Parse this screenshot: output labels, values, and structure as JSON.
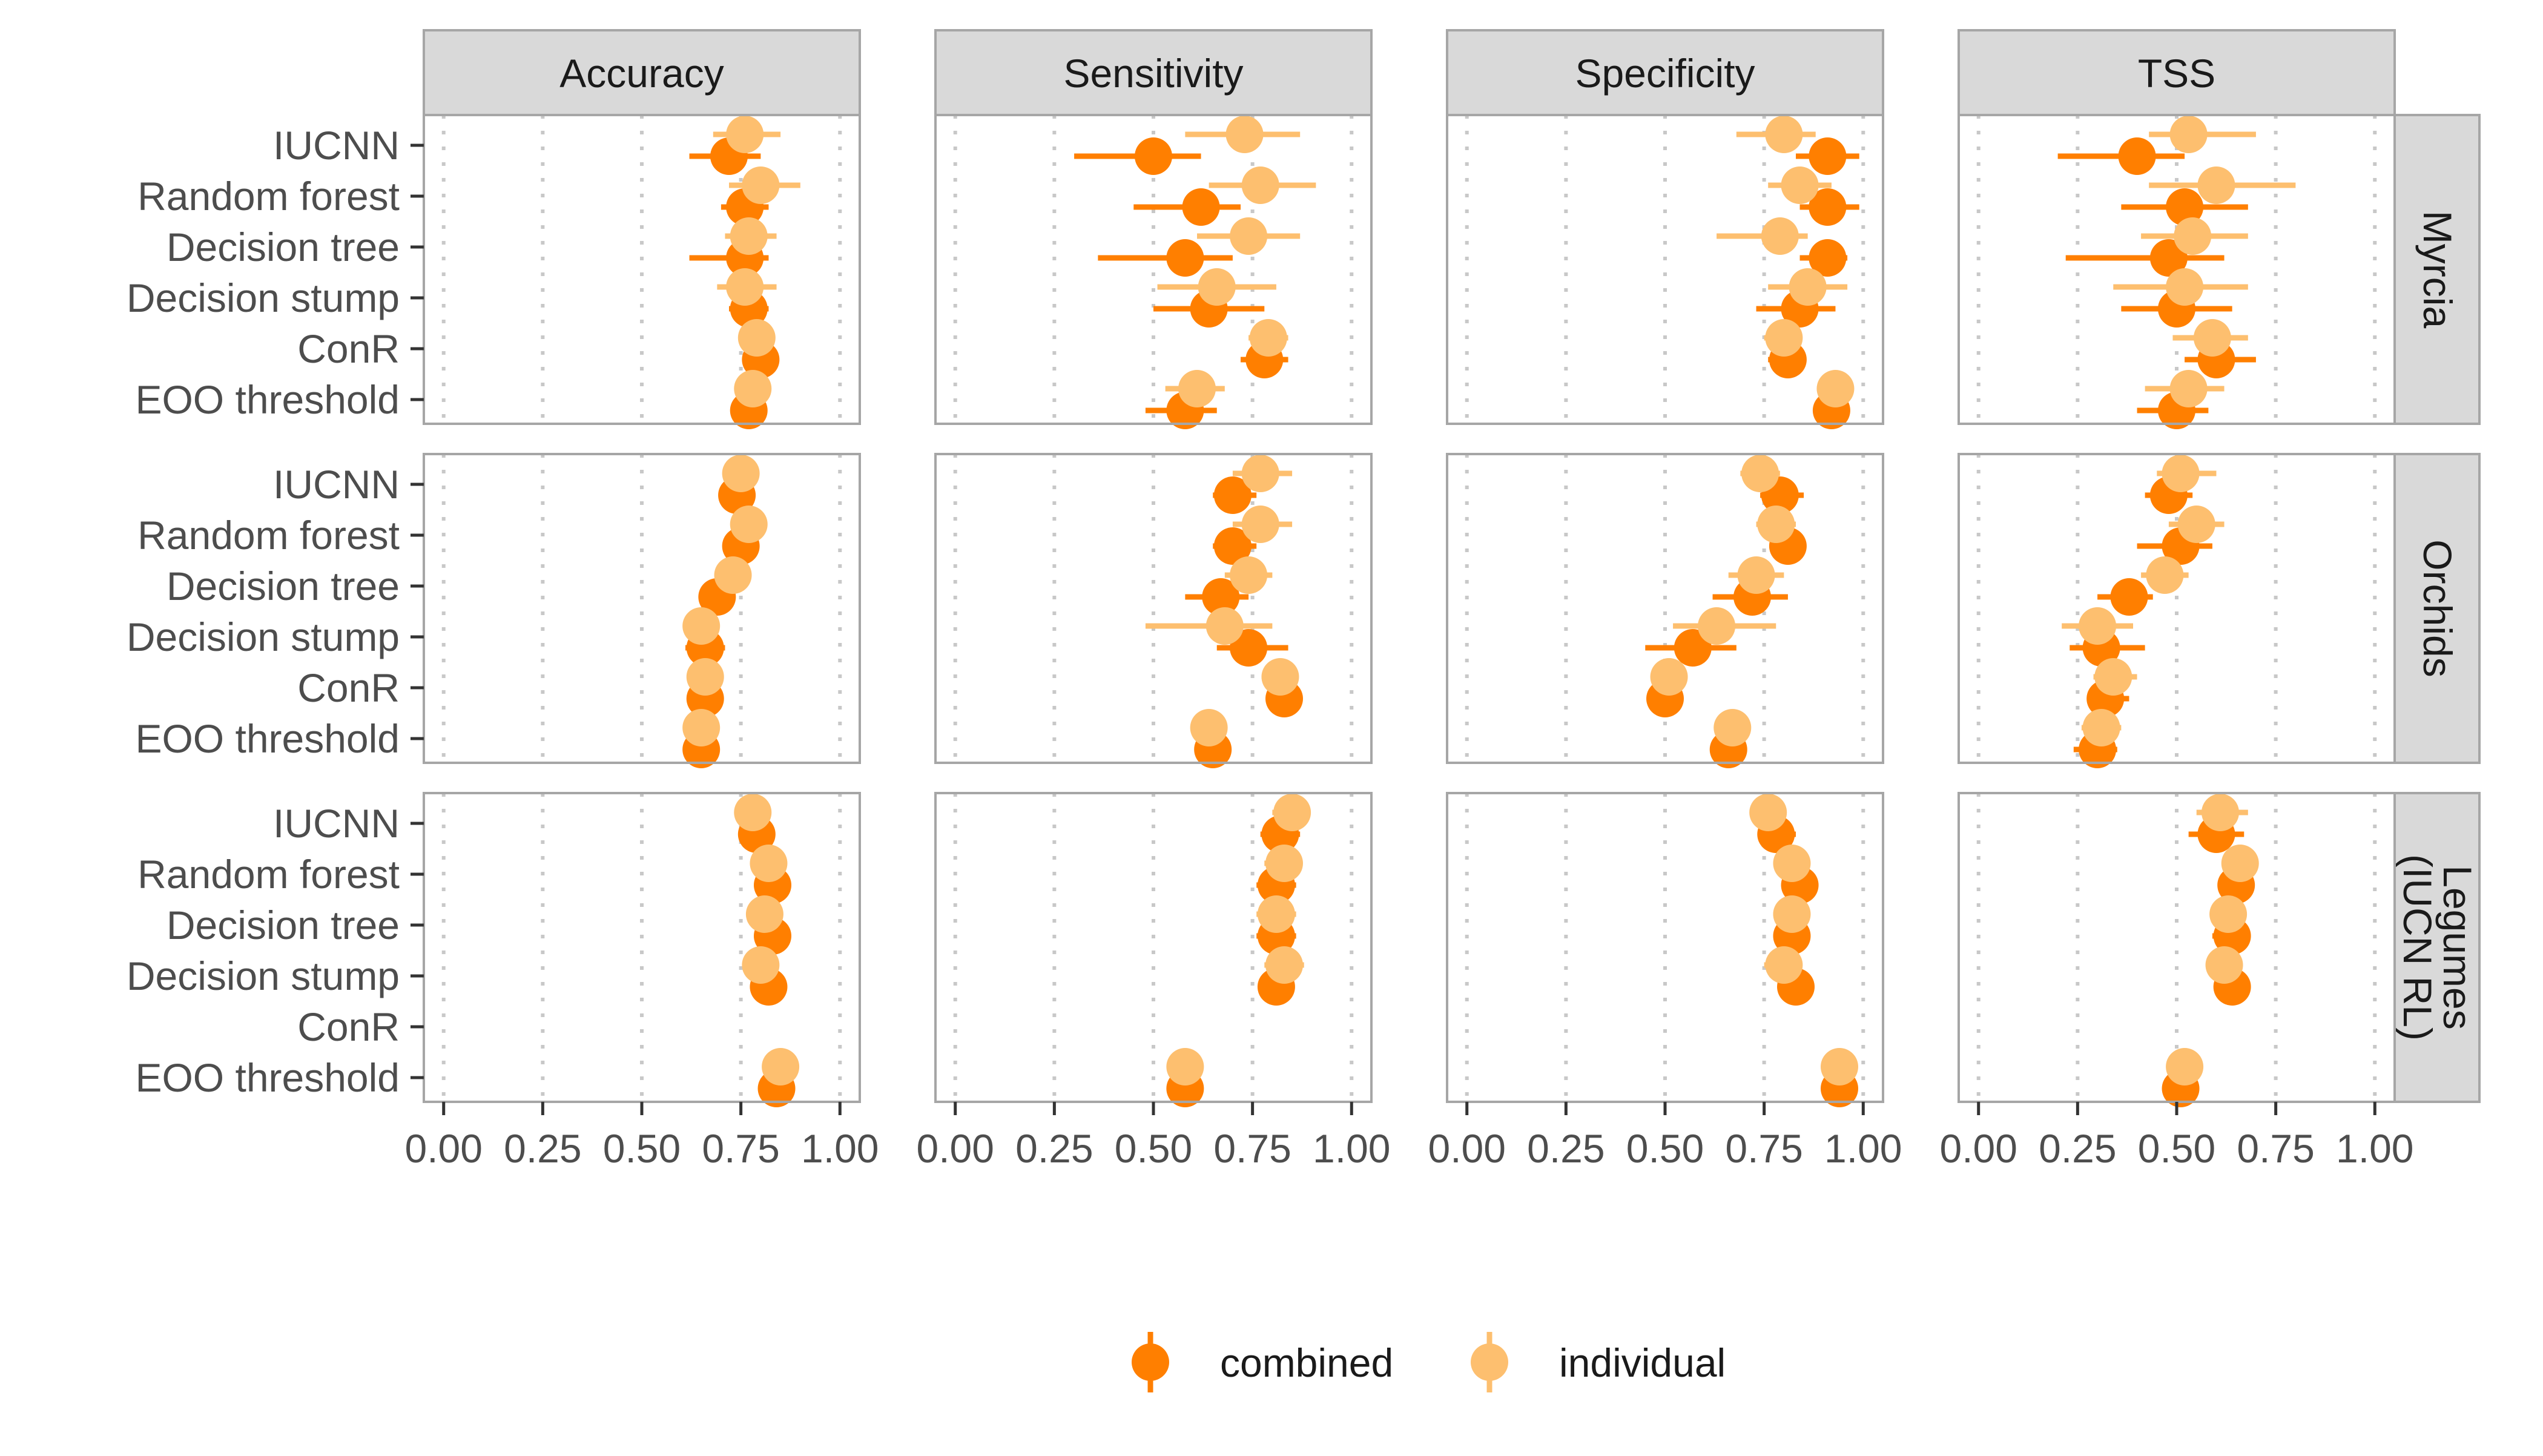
{
  "chart_data": {
    "type": "scatter",
    "subtype": "faceted dot plot with error bars",
    "metrics": [
      "Accuracy",
      "Sensitivity",
      "Specificity",
      "TSS"
    ],
    "datasets": [
      "Myrcia",
      "Orchids",
      "Legumes\n(IUCN RL)"
    ],
    "methods": [
      "IUCNN",
      "Random forest",
      "Decision tree",
      "Decision stump",
      "ConR",
      "EOO threshold"
    ],
    "x_ticks": [
      "0.00",
      "0.25",
      "0.50",
      "0.75",
      "1.00"
    ],
    "xlim": [
      -0.05,
      1.05
    ],
    "grid": "dotted vertical major gridlines",
    "legend": {
      "position": "bottom",
      "entries": [
        "combined",
        "individual"
      ]
    },
    "colors": {
      "combined": "#FF7F00",
      "individual": "#FDBF6F",
      "strip": "#D9D9D9",
      "panel_border": "#A6A6A6",
      "text": "#4D4D4D"
    },
    "series": [
      {
        "name": "combined",
        "facets": {
          "Myrcia": {
            "Accuracy": [
              [
                0.72,
                0.62,
                0.8
              ],
              [
                0.76,
                0.7,
                0.82
              ],
              [
                0.76,
                0.62,
                0.82
              ],
              [
                0.77,
                0.72,
                0.82
              ],
              [
                0.8,
                0.77,
                0.84
              ],
              [
                0.77,
                0.74,
                0.81
              ]
            ],
            "Sensitivity": [
              [
                0.5,
                0.3,
                0.62
              ],
              [
                0.62,
                0.45,
                0.72
              ],
              [
                0.58,
                0.36,
                0.7
              ],
              [
                0.64,
                0.5,
                0.78
              ],
              [
                0.78,
                0.72,
                0.84
              ],
              [
                0.58,
                0.48,
                0.66
              ]
            ],
            "Specificity": [
              [
                0.91,
                0.83,
                0.99
              ],
              [
                0.91,
                0.84,
                0.99
              ],
              [
                0.91,
                0.84,
                0.96
              ],
              [
                0.84,
                0.73,
                0.93
              ],
              [
                0.81,
                0.76,
                0.85
              ],
              [
                0.92,
                0.88,
                0.96
              ]
            ],
            "TSS": [
              [
                0.4,
                0.2,
                0.52
              ],
              [
                0.52,
                0.36,
                0.68
              ],
              [
                0.48,
                0.22,
                0.62
              ],
              [
                0.5,
                0.36,
                0.64
              ],
              [
                0.6,
                0.52,
                0.7
              ],
              [
                0.5,
                0.4,
                0.58
              ]
            ]
          },
          "Orchids": {
            "Accuracy": [
              [
                0.74,
                0.71,
                0.78
              ],
              [
                0.75,
                0.71,
                0.79
              ],
              [
                0.69,
                0.66,
                0.73
              ],
              [
                0.66,
                0.61,
                0.71
              ],
              [
                0.66,
                0.63,
                0.69
              ],
              [
                0.65,
                0.62,
                0.68
              ]
            ],
            "Sensitivity": [
              [
                0.7,
                0.65,
                0.76
              ],
              [
                0.7,
                0.65,
                0.76
              ],
              [
                0.67,
                0.58,
                0.74
              ],
              [
                0.74,
                0.66,
                0.84
              ],
              [
                0.83,
                0.8,
                0.86
              ],
              [
                0.65,
                0.62,
                0.69
              ]
            ],
            "Specificity": [
              [
                0.79,
                0.74,
                0.85
              ],
              [
                0.81,
                0.77,
                0.85
              ],
              [
                0.72,
                0.62,
                0.81
              ],
              [
                0.57,
                0.45,
                0.68
              ],
              [
                0.5,
                0.47,
                0.53
              ],
              [
                0.66,
                0.63,
                0.69
              ]
            ],
            "TSS": [
              [
                0.48,
                0.42,
                0.54
              ],
              [
                0.51,
                0.4,
                0.59
              ],
              [
                0.38,
                0.3,
                0.44
              ],
              [
                0.31,
                0.23,
                0.42
              ],
              [
                0.32,
                0.28,
                0.38
              ],
              [
                0.3,
                0.24,
                0.35
              ]
            ]
          },
          "Legumes\n(IUCN RL)": {
            "Accuracy": [
              [
                0.79,
                0.76,
                0.82
              ],
              [
                0.83,
                0.8,
                0.86
              ],
              [
                0.83,
                0.8,
                0.86
              ],
              [
                0.82,
                0.79,
                0.85
              ],
              null,
              [
                0.84,
                0.81,
                0.87
              ]
            ],
            "Sensitivity": [
              [
                0.82,
                0.77,
                0.87
              ],
              [
                0.81,
                0.76,
                0.86
              ],
              [
                0.81,
                0.76,
                0.86
              ],
              [
                0.81,
                0.77,
                0.85
              ],
              null,
              [
                0.58,
                0.55,
                0.61
              ]
            ],
            "Specificity": [
              [
                0.78,
                0.74,
                0.83
              ],
              [
                0.84,
                0.81,
                0.87
              ],
              [
                0.82,
                0.79,
                0.85
              ],
              [
                0.83,
                0.8,
                0.86
              ],
              null,
              [
                0.94,
                0.91,
                0.96
              ]
            ],
            "TSS": [
              [
                0.6,
                0.53,
                0.67
              ],
              [
                0.65,
                0.61,
                0.69
              ],
              [
                0.64,
                0.59,
                0.68
              ],
              [
                0.64,
                0.6,
                0.68
              ],
              null,
              [
                0.51,
                0.48,
                0.54
              ]
            ]
          }
        }
      },
      {
        "name": "individual",
        "facets": {
          "Myrcia": {
            "Accuracy": [
              [
                0.76,
                0.68,
                0.85
              ],
              [
                0.8,
                0.72,
                0.9
              ],
              [
                0.77,
                0.71,
                0.84
              ],
              [
                0.76,
                0.69,
                0.84
              ],
              [
                0.79,
                0.76,
                0.83
              ],
              [
                0.78,
                0.75,
                0.82
              ]
            ],
            "Sensitivity": [
              [
                0.73,
                0.58,
                0.87
              ],
              [
                0.77,
                0.64,
                0.91
              ],
              [
                0.74,
                0.61,
                0.87
              ],
              [
                0.66,
                0.51,
                0.81
              ],
              [
                0.79,
                0.74,
                0.84
              ],
              [
                0.61,
                0.53,
                0.68
              ]
            ],
            "Specificity": [
              [
                0.8,
                0.68,
                0.88
              ],
              [
                0.84,
                0.76,
                0.92
              ],
              [
                0.79,
                0.63,
                0.86
              ],
              [
                0.86,
                0.76,
                0.96
              ],
              [
                0.8,
                0.75,
                0.84
              ],
              [
                0.93,
                0.89,
                0.96
              ]
            ],
            "TSS": [
              [
                0.53,
                0.43,
                0.7
              ],
              [
                0.6,
                0.43,
                0.8
              ],
              [
                0.54,
                0.41,
                0.68
              ],
              [
                0.52,
                0.34,
                0.68
              ],
              [
                0.59,
                0.49,
                0.68
              ],
              [
                0.53,
                0.42,
                0.62
              ]
            ]
          },
          "Orchids": {
            "Accuracy": [
              [
                0.75,
                0.71,
                0.79
              ],
              [
                0.77,
                0.74,
                0.81
              ],
              [
                0.73,
                0.7,
                0.76
              ],
              [
                0.65,
                0.61,
                0.69
              ],
              [
                0.66,
                0.63,
                0.69
              ],
              [
                0.65,
                0.62,
                0.68
              ]
            ],
            "Sensitivity": [
              [
                0.77,
                0.7,
                0.85
              ],
              [
                0.77,
                0.7,
                0.85
              ],
              [
                0.74,
                0.68,
                0.8
              ],
              [
                0.68,
                0.48,
                0.8
              ],
              [
                0.82,
                0.79,
                0.85
              ],
              [
                0.64,
                0.61,
                0.68
              ]
            ],
            "Specificity": [
              [
                0.74,
                0.69,
                0.79
              ],
              [
                0.78,
                0.73,
                0.83
              ],
              [
                0.73,
                0.66,
                0.8
              ],
              [
                0.63,
                0.52,
                0.78
              ],
              [
                0.51,
                0.48,
                0.54
              ],
              [
                0.67,
                0.64,
                0.7
              ]
            ],
            "TSS": [
              [
                0.51,
                0.45,
                0.6
              ],
              [
                0.55,
                0.48,
                0.62
              ],
              [
                0.47,
                0.41,
                0.53
              ],
              [
                0.3,
                0.21,
                0.39
              ],
              [
                0.34,
                0.29,
                0.4
              ],
              [
                0.31,
                0.26,
                0.36
              ]
            ]
          },
          "Legumes\n(IUCN RL)": {
            "Accuracy": [
              [
                0.78,
                0.75,
                0.81
              ],
              [
                0.82,
                0.79,
                0.85
              ],
              [
                0.81,
                0.78,
                0.84
              ],
              [
                0.8,
                0.77,
                0.83
              ],
              null,
              [
                0.85,
                0.82,
                0.88
              ]
            ],
            "Sensitivity": [
              [
                0.85,
                0.8,
                0.89
              ],
              [
                0.83,
                0.78,
                0.87
              ],
              [
                0.81,
                0.76,
                0.86
              ],
              [
                0.83,
                0.78,
                0.88
              ],
              null,
              [
                0.58,
                0.55,
                0.61
              ]
            ],
            "Specificity": [
              [
                0.76,
                0.72,
                0.8
              ],
              [
                0.82,
                0.79,
                0.85
              ],
              [
                0.82,
                0.79,
                0.85
              ],
              [
                0.8,
                0.75,
                0.84
              ],
              null,
              [
                0.94,
                0.91,
                0.96
              ]
            ],
            "TSS": [
              [
                0.61,
                0.55,
                0.68
              ],
              [
                0.66,
                0.62,
                0.7
              ],
              [
                0.63,
                0.59,
                0.67
              ],
              [
                0.62,
                0.58,
                0.66
              ],
              null,
              [
                0.52,
                0.49,
                0.55
              ]
            ]
          }
        }
      }
    ]
  }
}
